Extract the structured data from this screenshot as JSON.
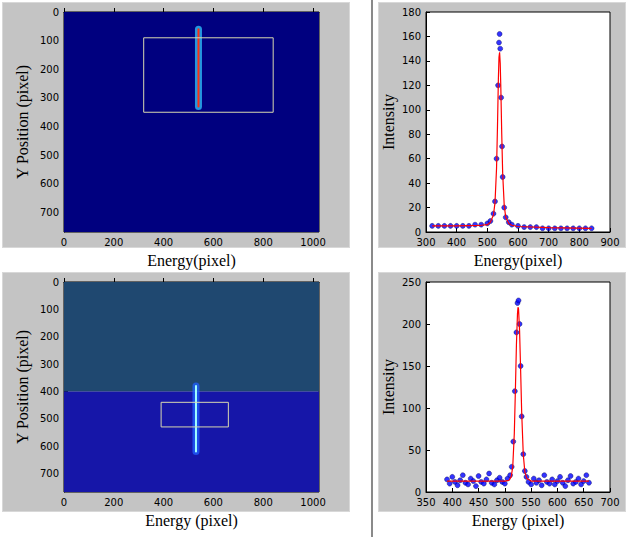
{
  "chart_data": [
    {
      "type": "image",
      "xlabel": "Energy(pixel)",
      "ylabel": "Y Position (pixel)",
      "xlim": [
        0,
        1024
      ],
      "ylim": [
        768,
        0
      ],
      "xticks": [
        0,
        200,
        400,
        600,
        800,
        1000
      ],
      "yticks": [
        0,
        100,
        200,
        300,
        400,
        500,
        600,
        700
      ],
      "regions": [
        {
          "y": [
            0,
            768
          ],
          "color": "#00007f"
        }
      ],
      "streak": {
        "x": 540,
        "y": [
          60,
          330
        ],
        "colors": [
          "#30c8ff",
          "#ff3010"
        ]
      },
      "rectangle": {
        "x": [
          320,
          840
        ],
        "y": [
          90,
          350
        ],
        "color": "#d8d8b0"
      }
    },
    {
      "type": "scatter",
      "xlabel": "Energy(pixel)",
      "ylabel": "Intensity",
      "xlim": [
        300,
        900
      ],
      "ylim": [
        0,
        180
      ],
      "xticks": [
        300,
        400,
        500,
        600,
        700,
        800,
        900
      ],
      "yticks": [
        0,
        20,
        40,
        60,
        80,
        100,
        120,
        140,
        160,
        180
      ],
      "series": [
        {
          "type": "scatter",
          "color": "#0000ff",
          "marker": "circle",
          "x": [
            320,
            340,
            360,
            380,
            400,
            420,
            440,
            460,
            480,
            500,
            510,
            520,
            525,
            530,
            535,
            538,
            540,
            542,
            545,
            548,
            550,
            555,
            560,
            570,
            580,
            600,
            620,
            640,
            660,
            680,
            700,
            720,
            740,
            760,
            780,
            800,
            820,
            840
          ],
          "values": [
            5,
            5,
            5,
            5,
            5,
            5,
            5,
            6,
            6,
            7,
            9,
            15,
            25,
            60,
            120,
            155,
            162,
            150,
            110,
            70,
            45,
            20,
            12,
            8,
            6,
            5,
            4,
            4,
            4,
            3,
            3,
            3,
            3,
            3,
            3,
            3,
            3,
            3
          ]
        },
        {
          "type": "line",
          "color": "#ff0000",
          "line_style": "solid",
          "x": [
            320,
            400,
            480,
            500,
            510,
            520,
            525,
            530,
            533,
            536,
            538,
            540,
            542,
            544,
            547,
            550,
            555,
            560,
            570,
            580,
            600,
            700,
            840
          ],
          "values": [
            5,
            5,
            5.5,
            6,
            8,
            14,
            24,
            52,
            85,
            125,
            143,
            147,
            138,
            118,
            80,
            48,
            22,
            12,
            7,
            5.5,
            4.5,
            3.5,
            3
          ]
        }
      ]
    },
    {
      "type": "image",
      "xlabel": "Energy (pixel)",
      "ylabel": "Y Position (pixel)",
      "xlim": [
        0,
        1024
      ],
      "ylim": [
        768,
        0
      ],
      "xticks": [
        0,
        200,
        400,
        600,
        800,
        1000
      ],
      "yticks": [
        0,
        100,
        200,
        300,
        400,
        500,
        600,
        700
      ],
      "regions": [
        {
          "y": [
            0,
            400
          ],
          "color": "#1f4870"
        },
        {
          "y": [
            400,
            768
          ],
          "color": "#1616a8"
        }
      ],
      "streak": {
        "x": 530,
        "y": [
          380,
          620
        ],
        "colors": [
          "#2060ff",
          "#a0ffff"
        ]
      },
      "rectangle": {
        "x": [
          390,
          660
        ],
        "y": [
          440,
          530
        ],
        "color": "#d8d8b0"
      }
    },
    {
      "type": "scatter",
      "xlabel": "Energy (pixel)",
      "ylabel": "Intensity",
      "xlim": [
        350,
        700
      ],
      "ylim": [
        0,
        250
      ],
      "xticks": [
        350,
        400,
        450,
        500,
        550,
        600,
        650,
        700
      ],
      "yticks": [
        0,
        50,
        100,
        150,
        200,
        250
      ],
      "series": [
        {
          "type": "scatter",
          "color": "#0000ff",
          "marker": "circle",
          "x": [
            390,
            395,
            400,
            405,
            410,
            415,
            420,
            425,
            430,
            435,
            440,
            445,
            450,
            455,
            460,
            465,
            470,
            475,
            480,
            485,
            490,
            495,
            500,
            505,
            510,
            513,
            516,
            519,
            522,
            524,
            526,
            528,
            530,
            532,
            535,
            538,
            541,
            545,
            550,
            555,
            560,
            565,
            570,
            575,
            580,
            585,
            590,
            595,
            600,
            605,
            610,
            615,
            620,
            625,
            630,
            635,
            640,
            645,
            650,
            655,
            660
          ],
          "values": [
            15,
            10,
            18,
            12,
            8,
            14,
            20,
            11,
            9,
            16,
            13,
            7,
            19,
            12,
            10,
            15,
            22,
            11,
            9,
            14,
            17,
            12,
            10,
            16,
            20,
            30,
            60,
            120,
            190,
            225,
            228,
            200,
            150,
            90,
            45,
            25,
            18,
            12,
            9,
            16,
            11,
            14,
            8,
            20,
            12,
            10,
            15,
            9,
            13,
            18,
            11,
            7,
            14,
            19,
            10,
            12,
            16,
            9,
            13,
            20,
            11
          ]
        },
        {
          "type": "line",
          "color": "#ff0000",
          "line_style": "solid",
          "x": [
            390,
            450,
            500,
            508,
            512,
            515,
            518,
            520,
            522,
            524,
            525,
            526,
            528,
            530,
            532,
            535,
            538,
            542,
            550,
            600,
            660
          ],
          "values": [
            13,
            13,
            13,
            14,
            18,
            30,
            70,
            120,
            175,
            212,
            220,
            218,
            192,
            145,
            95,
            45,
            24,
            16,
            13,
            13,
            13
          ]
        }
      ]
    }
  ]
}
